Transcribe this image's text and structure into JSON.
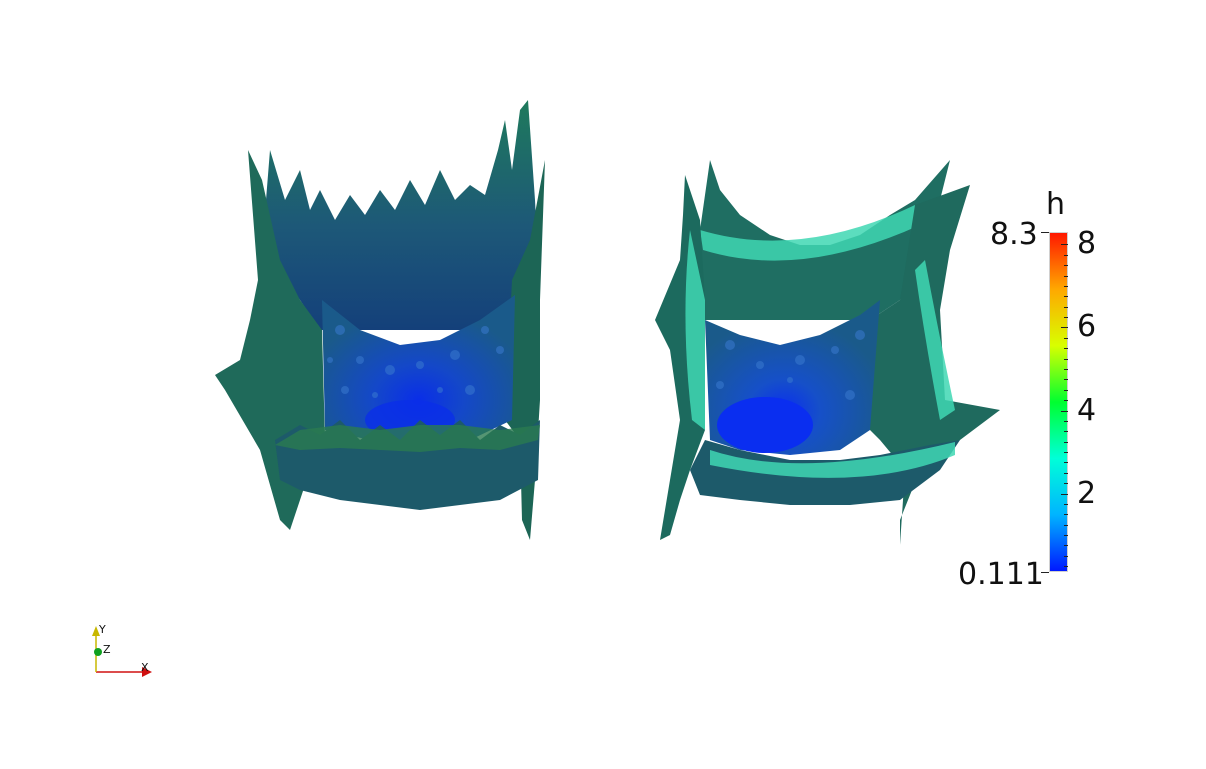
{
  "colorbar": {
    "title": "h",
    "max_label": "8.3",
    "min_label": "0.111",
    "min": 0.111,
    "max": 8.3,
    "tick_labels": [
      "8",
      "6",
      "4",
      "2"
    ],
    "tick_values": [
      8,
      6,
      4,
      2
    ],
    "colors": [
      "#0018ff",
      "#00b4ff",
      "#00ffd8",
      "#00ff30",
      "#d8ff00",
      "#ffa800",
      "#ff1800"
    ]
  },
  "axes": {
    "x_label": "X",
    "y_label": "Y",
    "z_label": "Z",
    "x_color": "#d01010",
    "y_color": "#e0d000",
    "z_color": "#10a020"
  },
  "surface_colors": {
    "outer": "#1f6a5a",
    "mid": "#1a4f7a",
    "inner": "#1446b8",
    "core": "#0a2ee8",
    "rim": "#3fd7b3"
  }
}
